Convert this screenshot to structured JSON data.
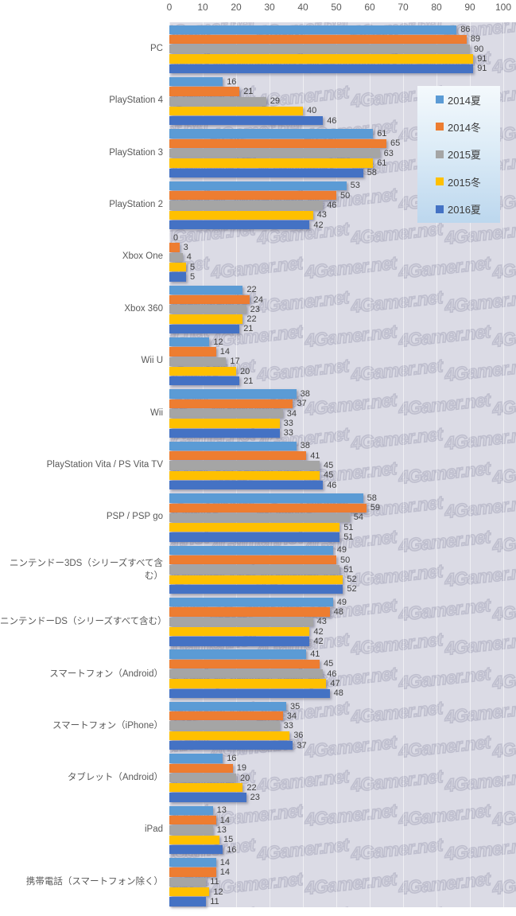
{
  "watermark": {
    "text": "4Gamer.net"
  },
  "chart_data": {
    "type": "bar",
    "orientation": "horizontal-grouped",
    "title": "",
    "xlabel": "",
    "ylabel": "",
    "x_axis": {
      "min": 0,
      "max": 100,
      "tick_interval": 10,
      "tick_labels": [
        "0",
        "10",
        "20",
        "30",
        "40",
        "50",
        "60",
        "70",
        "80",
        "90",
        "100"
      ]
    },
    "grid": true,
    "legend_position": "top-right",
    "plot_background": "#dbdbe5",
    "series": [
      {
        "name": "2014夏",
        "color": "#5B9BD5"
      },
      {
        "name": "2014冬",
        "color": "#ED7D31"
      },
      {
        "name": "2015夏",
        "color": "#A5A5A5"
      },
      {
        "name": "2015冬",
        "color": "#FFC000"
      },
      {
        "name": "2016夏",
        "color": "#4472C4"
      }
    ],
    "categories": [
      "PC",
      "PlayStation 4",
      "PlayStation 3",
      "PlayStation 2",
      "Xbox One",
      "Xbox 360",
      "Wii U",
      "Wii",
      "PlayStation Vita / PS Vita TV",
      "PSP / PSP go",
      "ニンテンドー3DS（シリーズすべて含む）",
      "ニンテンドーDS（シリーズすべて含む）",
      "スマートフォン（Android）",
      "スマートフォン（iPhone）",
      "タブレット（Android）",
      "iPad",
      "携帯電話（スマートフォン除く）"
    ],
    "values": [
      [
        86,
        89,
        90,
        91,
        91
      ],
      [
        16,
        21,
        29,
        40,
        46
      ],
      [
        61,
        65,
        63,
        61,
        58
      ],
      [
        53,
        50,
        46,
        43,
        42
      ],
      [
        0,
        3,
        4,
        5,
        5
      ],
      [
        22,
        24,
        23,
        22,
        21
      ],
      [
        12,
        14,
        17,
        20,
        21
      ],
      [
        38,
        37,
        34,
        33,
        33
      ],
      [
        38,
        41,
        45,
        45,
        46
      ],
      [
        58,
        59,
        54,
        51,
        51
      ],
      [
        49,
        50,
        51,
        52,
        52
      ],
      [
        49,
        48,
        43,
        42,
        42
      ],
      [
        41,
        45,
        46,
        47,
        48
      ],
      [
        35,
        34,
        33,
        36,
        37
      ],
      [
        16,
        19,
        20,
        22,
        23
      ],
      [
        13,
        14,
        13,
        15,
        16
      ],
      [
        14,
        14,
        11,
        12,
        11
      ]
    ]
  }
}
